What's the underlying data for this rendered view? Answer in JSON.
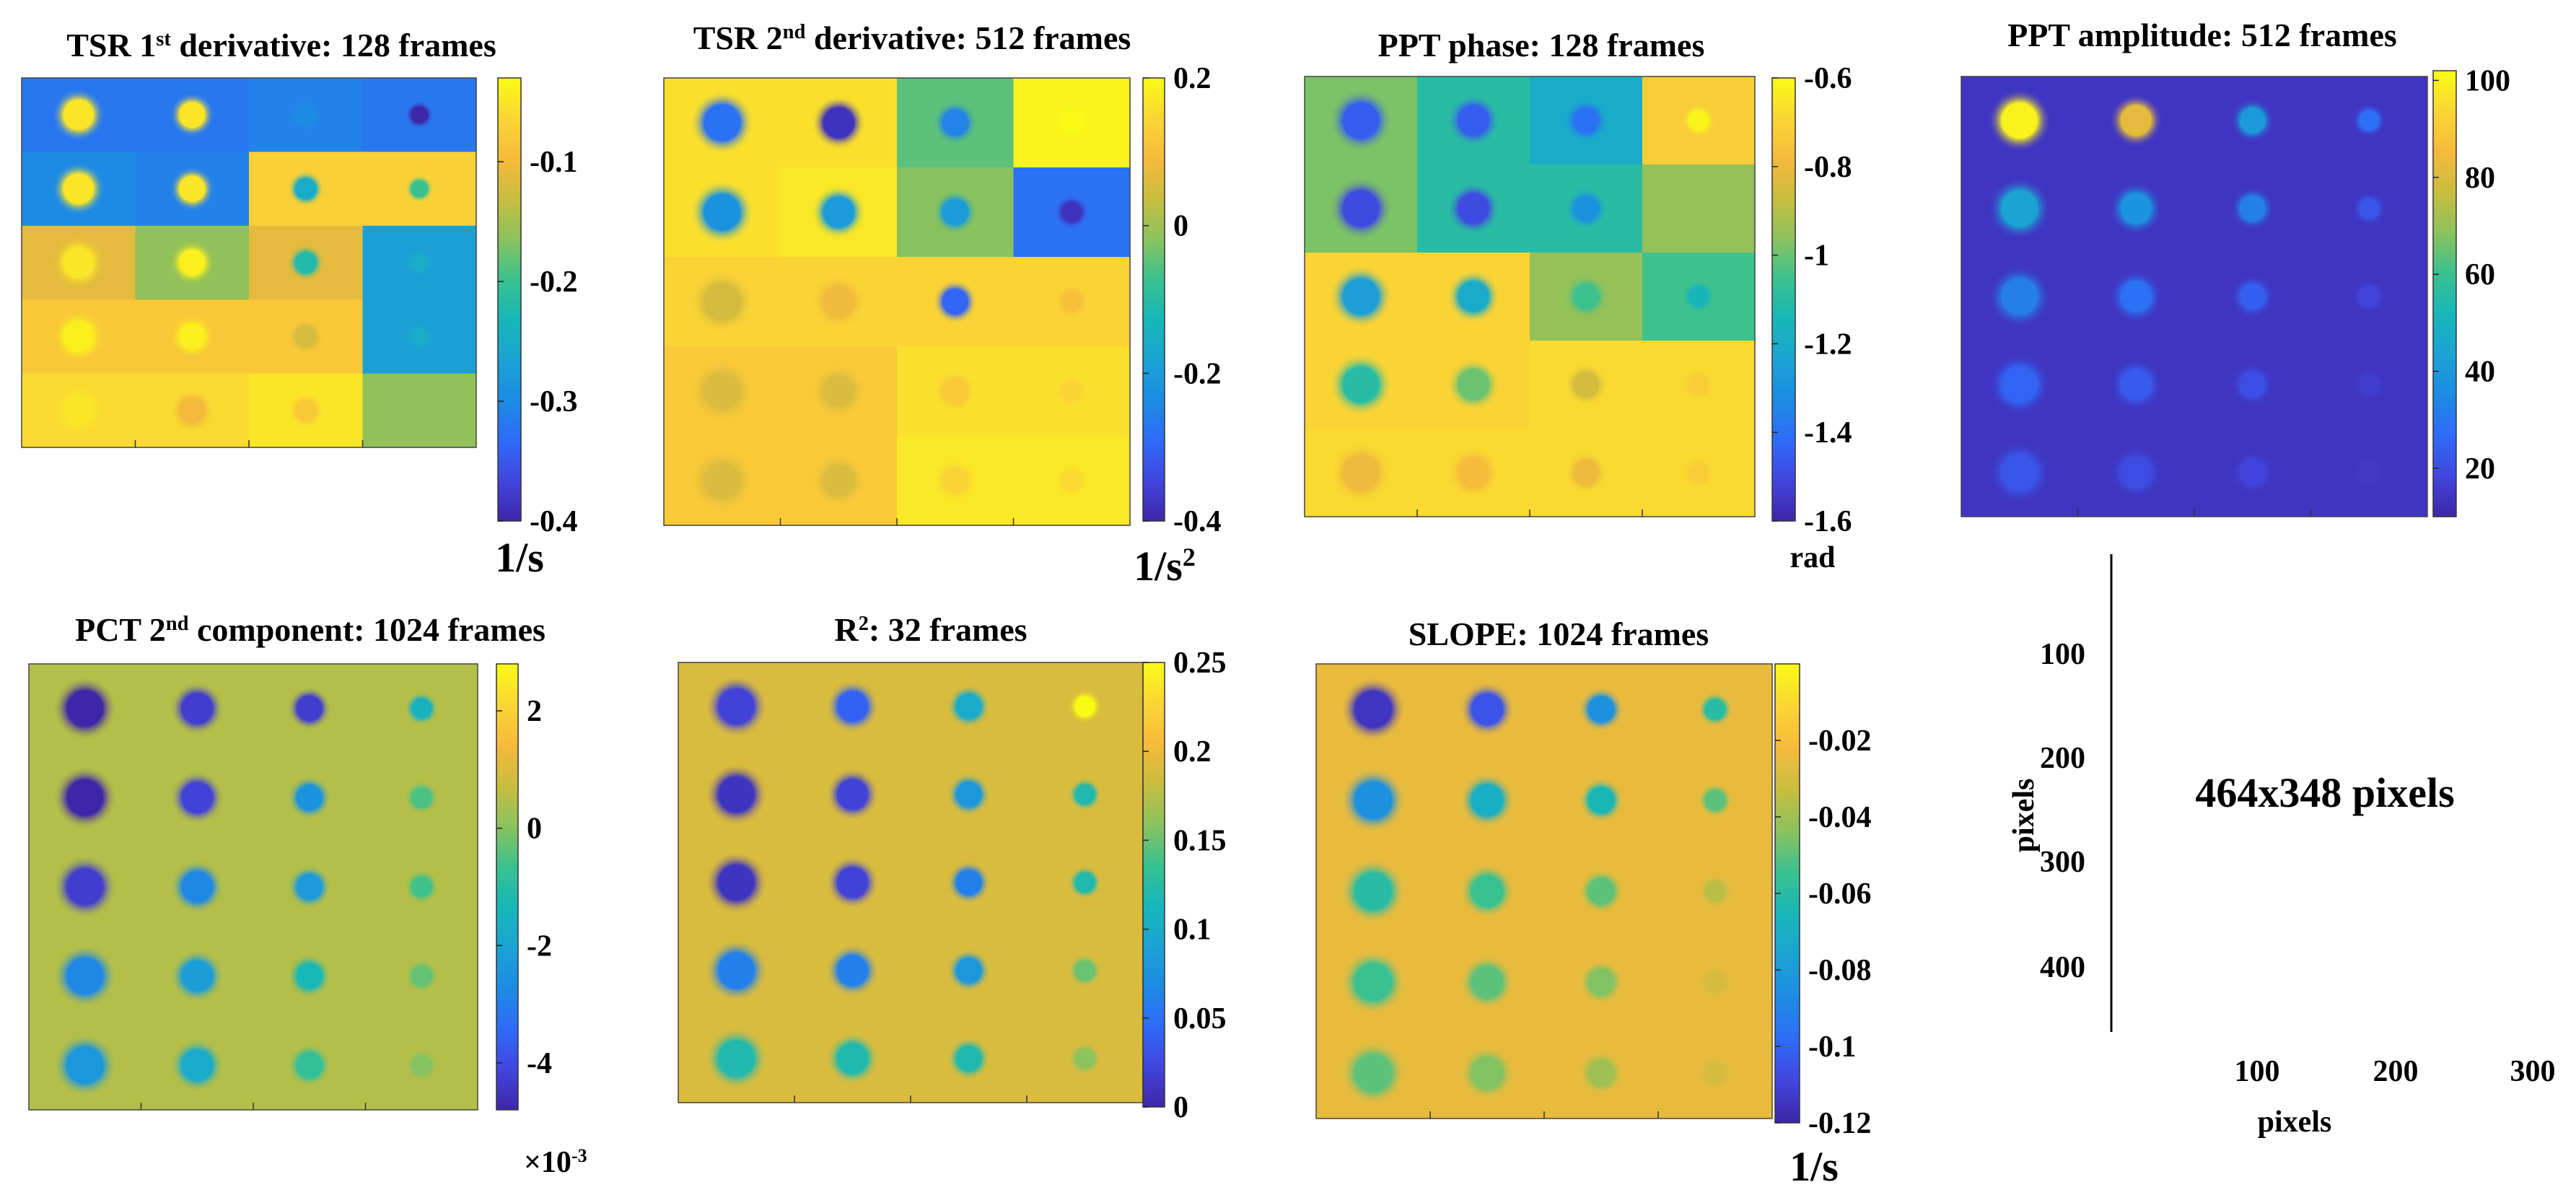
{
  "chart_data": [
    {
      "type": "heatmap",
      "title": {
        "base": "TSR 1",
        "sup": "st",
        "rest": " derivative: 128 frames"
      },
      "colorbar": {
        "min": -0.4,
        "max": -0.03,
        "ticks": [
          -0.1,
          -0.2,
          -0.3,
          -0.4
        ],
        "tick_labels": [
          "-0.1",
          "-0.2",
          "-0.3",
          "-0.4"
        ],
        "unit": {
          "base": "1/s",
          "sup": ""
        }
      },
      "rows": 5,
      "cols": 4,
      "tiles": [
        [
          -0.32,
          -0.32,
          -0.31,
          -0.32
        ],
        [
          -0.3,
          -0.31,
          -0.07,
          -0.07
        ],
        [
          -0.11,
          -0.16,
          -0.11,
          -0.27
        ],
        [
          -0.08,
          -0.08,
          -0.08,
          -0.27
        ],
        [
          -0.06,
          -0.06,
          -0.05,
          -0.16
        ]
      ],
      "spots": [
        [
          -0.05,
          -0.05,
          -0.3,
          -0.4
        ],
        [
          -0.05,
          -0.05,
          -0.25,
          -0.2
        ],
        [
          -0.05,
          -0.04,
          -0.22,
          -0.25
        ],
        [
          -0.04,
          -0.04,
          -0.12,
          -0.25
        ],
        [
          -0.05,
          -0.1,
          -0.08,
          -0.16
        ]
      ]
    },
    {
      "type": "heatmap",
      "title": {
        "base": "TSR 2",
        "sup": "nd",
        "rest": " derivative: 512 frames"
      },
      "colorbar": {
        "min": -0.4,
        "max": 0.2,
        "ticks": [
          0.2,
          0,
          -0.2,
          -0.4
        ],
        "tick_labels": [
          "0.2",
          "0",
          "-0.2",
          "-0.4"
        ],
        "unit": {
          "base": "1/s",
          "sup": "2"
        }
      },
      "rows": 5,
      "cols": 4,
      "tiles": [
        [
          0.16,
          0.16,
          -0.05,
          0.19
        ],
        [
          0.16,
          0.17,
          -0.02,
          -0.28
        ],
        [
          0.14,
          0.14,
          0.14,
          0.14
        ],
        [
          0.12,
          0.12,
          0.16,
          0.16
        ],
        [
          0.12,
          0.12,
          0.17,
          0.17
        ]
      ],
      "spots": [
        [
          -0.28,
          -0.38,
          -0.25,
          0.2
        ],
        [
          -0.22,
          -0.2,
          -0.2,
          -0.38
        ],
        [
          0.05,
          0.08,
          -0.3,
          0.1
        ],
        [
          0.06,
          0.06,
          0.12,
          0.14
        ],
        [
          0.06,
          0.06,
          0.14,
          0.15
        ]
      ]
    },
    {
      "type": "heatmap",
      "title": {
        "base": "PPT phase: 128 frames",
        "sup": "",
        "rest": ""
      },
      "colorbar": {
        "min": -1.6,
        "max": -0.6,
        "ticks": [
          -0.6,
          -0.8,
          -1,
          -1.2,
          -1.4,
          -1.6
        ],
        "tick_labels": [
          "-0.6",
          "-0.8",
          "-1",
          "-1.2",
          "-1.4",
          "-1.6"
        ],
        "unit": {
          "base": "rad",
          "sup": ""
        }
      },
      "rows": 5,
      "cols": 4,
      "tiles": [
        [
          -0.98,
          -1.1,
          -1.2,
          -0.72
        ],
        [
          -0.98,
          -1.1,
          -1.1,
          -0.95
        ],
        [
          -0.7,
          -0.7,
          -0.95,
          -1.05
        ],
        [
          -0.7,
          -0.7,
          -0.68,
          -0.68
        ],
        [
          -0.68,
          -0.68,
          -0.68,
          -0.68
        ]
      ],
      "spots": [
        [
          -1.45,
          -1.45,
          -1.4,
          -0.62
        ],
        [
          -1.5,
          -1.5,
          -1.3,
          -0.95
        ],
        [
          -1.25,
          -1.2,
          -1.05,
          -1.15
        ],
        [
          -1.1,
          -1.0,
          -0.85,
          -0.72
        ],
        [
          -0.8,
          -0.78,
          -0.8,
          -0.72
        ]
      ]
    },
    {
      "type": "heatmap",
      "title": {
        "base": "PPT amplitude: 512 frames",
        "sup": "",
        "rest": ""
      },
      "colorbar": {
        "min": 10,
        "max": 102,
        "ticks": [
          100,
          80,
          60,
          40,
          20
        ],
        "tick_labels": [
          "100",
          "80",
          "60",
          "40",
          "20"
        ],
        "unit": {
          "base": "",
          "sup": ""
        }
      },
      "rows": 5,
      "cols": 4,
      "background": 14,
      "spots": [
        [
          100,
          82,
          40,
          28
        ],
        [
          44,
          38,
          32,
          22
        ],
        [
          32,
          28,
          24,
          18
        ],
        [
          25,
          23,
          20,
          16
        ],
        [
          22,
          20,
          18,
          15
        ]
      ]
    },
    {
      "type": "heatmap",
      "title": {
        "base": "PCT 2",
        "sup": "nd",
        "rest": " component: 1024 frames"
      },
      "colorbar": {
        "min": -4.8,
        "max": 2.8,
        "ticks": [
          2,
          0,
          -2,
          -4
        ],
        "tick_labels": [
          "2",
          "0",
          "-2",
          "-4"
        ],
        "multiplier": {
          "base": "×10",
          "sup": "-3"
        }
      },
      "rows": 5,
      "cols": 4,
      "background": 0.5,
      "spots": [
        [
          -4.8,
          -4.3,
          -4.3,
          -1.5
        ],
        [
          -4.8,
          -4.2,
          -2.5,
          -0.5
        ],
        [
          -4.3,
          -2.8,
          -2.3,
          -0.6
        ],
        [
          -2.8,
          -2.2,
          -1.3,
          -0.3
        ],
        [
          -2.4,
          -1.8,
          -0.8,
          0.0
        ]
      ]
    },
    {
      "type": "heatmap",
      "title": {
        "base": "R",
        "sup": "2",
        "rest": ": 32 frames"
      },
      "colorbar": {
        "min": 0,
        "max": 0.25,
        "ticks": [
          0.25,
          0.2,
          0.15,
          0.1,
          0.05,
          0
        ],
        "tick_labels": [
          "0.25",
          "0.2",
          "0.15",
          "0.1",
          "0.05",
          "0"
        ],
        "unit": {
          "base": "",
          "sup": ""
        }
      },
      "rows": 5,
      "cols": 4,
      "background": 0.19,
      "spots": [
        [
          0.02,
          0.04,
          0.1,
          0.25
        ],
        [
          0.01,
          0.02,
          0.08,
          0.12
        ],
        [
          0.01,
          0.02,
          0.06,
          0.12
        ],
        [
          0.06,
          0.06,
          0.08,
          0.15
        ],
        [
          0.12,
          0.12,
          0.12,
          0.16
        ]
      ]
    },
    {
      "type": "heatmap",
      "title": {
        "base": "SLOPE: 1024 frames",
        "sup": "",
        "rest": ""
      },
      "colorbar": {
        "min": -0.12,
        "max": 0.0,
        "ticks": [
          -0.02,
          -0.04,
          -0.06,
          -0.08,
          -0.1,
          -0.12
        ],
        "tick_labels": [
          "-0.02",
          "-0.04",
          "-0.06",
          "-0.08",
          "-0.1",
          "-0.12"
        ],
        "unit": {
          "base": "1/s",
          "sup": ""
        }
      },
      "rows": 5,
      "cols": 4,
      "background": -0.025,
      "spots": [
        [
          -0.115,
          -0.105,
          -0.085,
          -0.06
        ],
        [
          -0.085,
          -0.07,
          -0.065,
          -0.05
        ],
        [
          -0.06,
          -0.055,
          -0.05,
          -0.035
        ],
        [
          -0.055,
          -0.05,
          -0.045,
          -0.03
        ],
        [
          -0.05,
          -0.045,
          -0.04,
          -0.03
        ]
      ]
    }
  ],
  "reference": {
    "xlabel": "pixels",
    "ylabel": "pixels",
    "x_ticks": [
      "100",
      "200",
      "300"
    ],
    "y_ticks": [
      "100",
      "200",
      "300",
      "400"
    ],
    "size_label": "464x348 pixels"
  }
}
